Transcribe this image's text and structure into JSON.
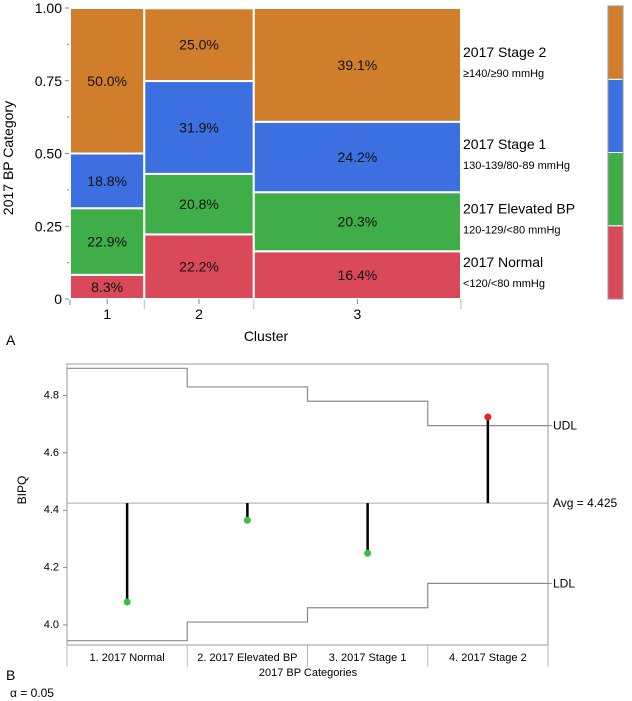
{
  "chart_data": [
    {
      "type": "mosaic",
      "panel_label": "A",
      "xlabel": "Cluster",
      "ylabel": "2017 BP Category",
      "ylim": [
        0,
        1
      ],
      "yticks": [
        "0",
        "0.25",
        "0.50",
        "0.75",
        "1.00"
      ],
      "ytick_values": [
        0,
        0.25,
        0.5,
        0.75,
        1.0
      ],
      "categories": [
        "1",
        "2",
        "3"
      ],
      "cluster_share": [
        0.19,
        0.28,
        0.53
      ],
      "series": [
        {
          "name": "2017 Normal",
          "sub": "<120/<80 mmHg",
          "color": "#d9495a",
          "values": [
            8.3,
            22.2,
            16.4
          ],
          "labels": [
            "8.3%",
            "22.2%",
            "16.4%"
          ]
        },
        {
          "name": "2017 Elevated BP",
          "sub": "120-129/<80 mmHg",
          "color": "#3fae49",
          "values": [
            22.9,
            20.8,
            20.3
          ],
          "labels": [
            "22.9%",
            "20.8%",
            "20.3%"
          ]
        },
        {
          "name": "2017 Stage 1",
          "sub": "130-139/80-89 mmHg",
          "color": "#3c6fe0",
          "values": [
            18.8,
            31.9,
            24.2
          ],
          "labels": [
            "18.8%",
            "31.9%",
            "24.2%"
          ]
        },
        {
          "name": "2017 Stage 2",
          "sub": "≥140/≥90 mmHg",
          "color": "#d17e2c",
          "values": [
            50.0,
            25.0,
            39.1
          ],
          "labels": [
            "50.0%",
            "25.0%",
            "39.1%"
          ]
        }
      ]
    },
    {
      "type": "analysis-of-means",
      "panel_label": "B",
      "xlabel": "2017 BP Categories",
      "ylabel": "BIPQ",
      "ylim": [
        3.93,
        4.91
      ],
      "yticks": [
        "4.0",
        "4.2",
        "4.4",
        "4.6",
        "4.8"
      ],
      "ytick_values": [
        4.0,
        4.2,
        4.4,
        4.6,
        4.8
      ],
      "categories": [
        "1. 2017 Normal",
        "2. 2017 Elevated BP",
        "3. 2017 Stage 1",
        "4. 2017 Stage 2"
      ],
      "means": [
        4.08,
        4.365,
        4.25,
        4.725
      ],
      "point_colors": [
        "#36c23a",
        "#36c23a",
        "#36c23a",
        "#e8202a"
      ],
      "avg": 4.425,
      "avg_label": "Avg = 4.425",
      "udl": [
        4.895,
        4.83,
        4.78,
        4.695
      ],
      "ldl": [
        3.945,
        4.01,
        4.06,
        4.145
      ],
      "udl_label": "UDL",
      "ldl_label": "LDL",
      "alpha_label": "α = 0.05"
    }
  ]
}
